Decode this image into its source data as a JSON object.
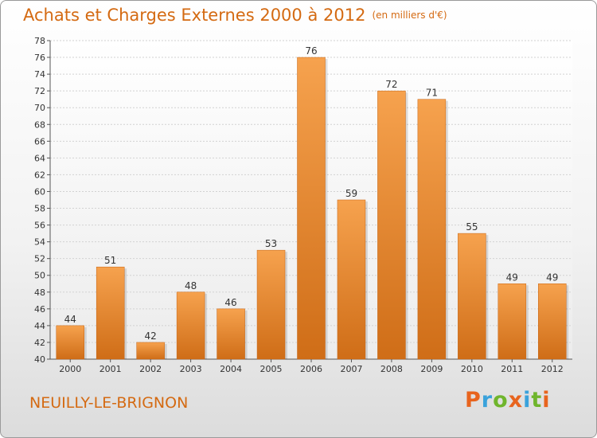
{
  "header": {
    "title": "Achats et Charges Externes 2000 à 2012",
    "unit": "(en milliers d'€)"
  },
  "footer": {
    "location": "NEUILLY-LE-BRIGNON",
    "logo": "Proxiti"
  },
  "colors": {
    "accent": "#d46a12",
    "bar_light": "#f6a24e",
    "bar_dark": "#cf6d17",
    "logo_letters": [
      "#e8641e",
      "#3aa2db",
      "#6fb52c",
      "#e8641e",
      "#3aa2db",
      "#6fb52c",
      "#e8641e"
    ]
  },
  "chart_data": {
    "type": "bar",
    "categories": [
      "2000",
      "2001",
      "2002",
      "2003",
      "2004",
      "2005",
      "2006",
      "2007",
      "2008",
      "2009",
      "2010",
      "2011",
      "2012"
    ],
    "values": [
      44,
      51,
      42,
      48,
      46,
      53,
      76,
      59,
      72,
      71,
      55,
      49,
      49
    ],
    "title": "Achats et Charges Externes 2000 à 2012",
    "ylim": [
      40,
      78
    ],
    "yticks": [
      40,
      42,
      44,
      46,
      48,
      50,
      52,
      54,
      56,
      58,
      60,
      62,
      64,
      66,
      68,
      70,
      72,
      74,
      76,
      78
    ],
    "grid": true
  }
}
